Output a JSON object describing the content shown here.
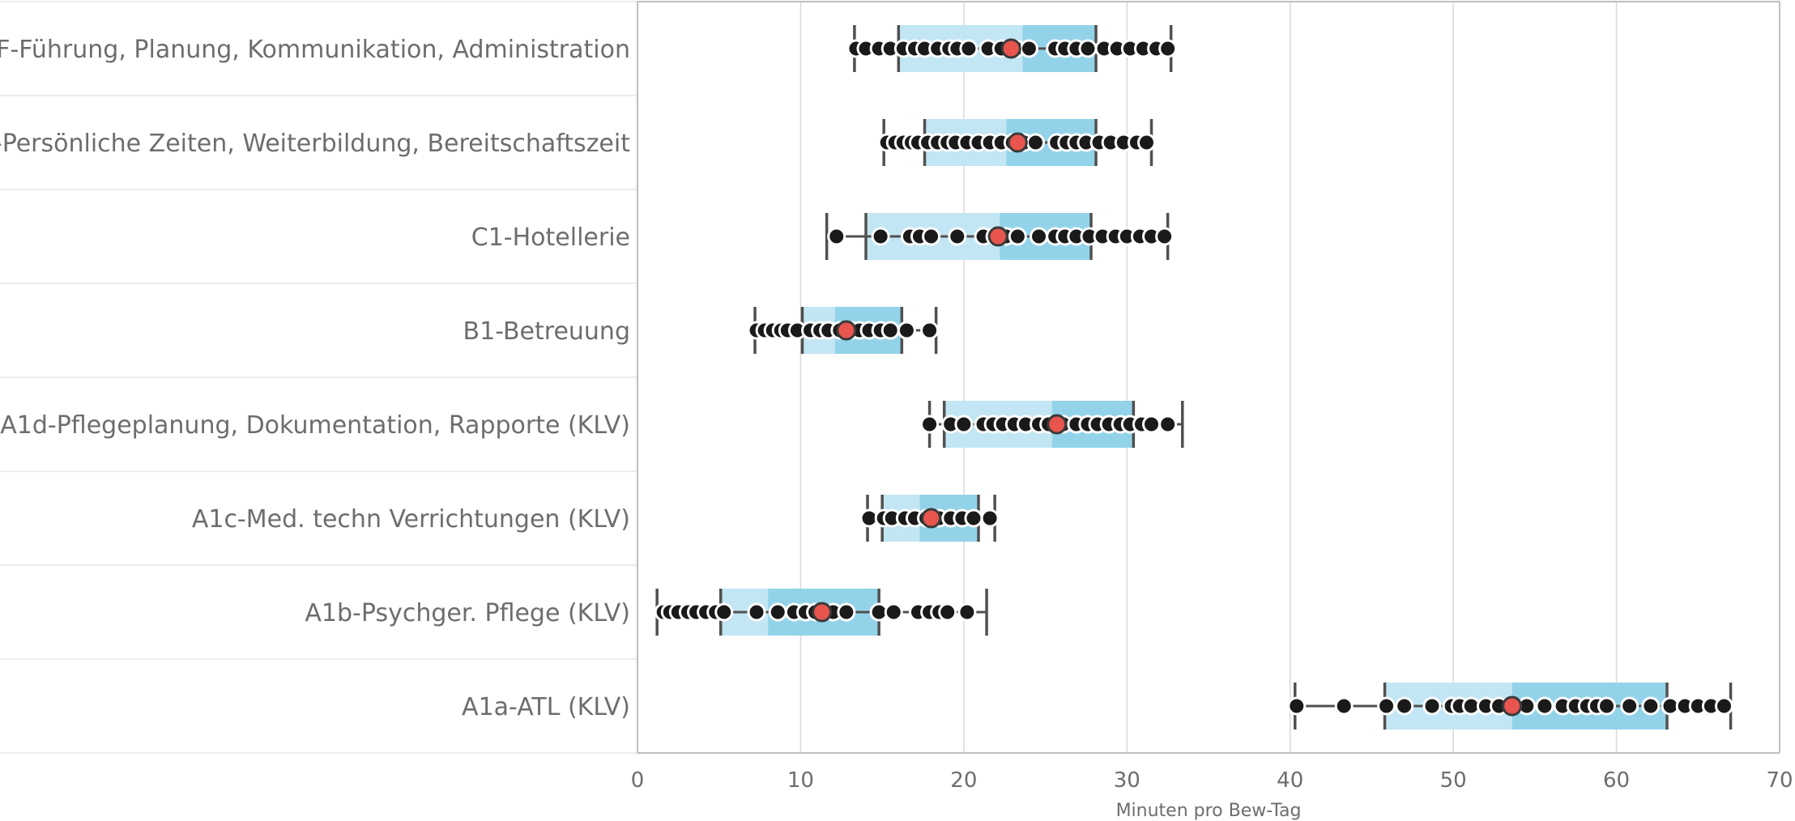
{
  "chart_data": {
    "type": "box",
    "xlabel": "Minuten pro Bew-Tag",
    "xlim": [
      0,
      70
    ],
    "x_ticks": [
      "0",
      "10",
      "20",
      "30",
      "40",
      "50",
      "60",
      "70"
    ],
    "grid": "vertical",
    "colors": {
      "box_q1_median": "#c2e6f3",
      "box_median_q3": "#93d3ea",
      "whisker": "#505050",
      "point": "#1a1a1a",
      "mean_point": "#e8554e",
      "gridline": "#d9d9d9",
      "row_separator": "#e6e6e6"
    },
    "categories": [
      "F-Führung, Planung, Kommunikation, Administration",
      "D-Persönliche Zeiten, Weiterbildung, Bereitschaftszeit",
      "C1-Hotellerie",
      "B1-Betreuung",
      "A1d-Pflegeplanung, Dokumentation, Rapporte (KLV)",
      "A1c-Med. techn Verrichtungen (KLV)",
      "A1b-Psychger. Pflege (KLV)",
      "A1a-ATL (KLV)"
    ],
    "boxes": [
      {
        "min": 13.3,
        "q1": 16.0,
        "median": 23.6,
        "q3": 28.1,
        "max": 32.7,
        "mean": 22.9,
        "points": [
          13.4,
          14.0,
          14.8,
          15.5,
          16.3,
          17.0,
          17.6,
          18.4,
          19.1,
          19.6,
          20.3,
          21.5,
          22.3,
          23.2,
          24.0,
          25.6,
          26.2,
          26.9,
          27.6,
          28.6,
          29.4,
          30.2,
          31.0,
          31.8,
          32.5
        ]
      },
      {
        "min": 15.1,
        "q1": 17.6,
        "median": 22.6,
        "q3": 28.1,
        "max": 31.5,
        "mean": 23.3,
        "points": [
          15.3,
          15.8,
          16.3,
          16.8,
          17.2,
          17.8,
          18.4,
          19.0,
          19.5,
          20.2,
          20.9,
          21.6,
          22.3,
          23.0,
          23.7,
          24.4,
          25.7,
          26.3,
          26.9,
          27.5,
          28.3,
          29.0,
          29.8,
          30.6,
          31.2
        ]
      },
      {
        "min": 11.6,
        "q1": 14.0,
        "median": 22.2,
        "q3": 27.8,
        "max": 32.5,
        "mean": 22.1,
        "points": [
          12.2,
          14.9,
          16.7,
          17.3,
          18.0,
          19.6,
          21.2,
          21.9,
          22.6,
          23.3,
          24.6,
          25.6,
          26.2,
          26.9,
          27.7,
          28.5,
          29.3,
          30.0,
          30.8,
          31.5,
          32.3
        ]
      },
      {
        "min": 7.2,
        "q1": 10.1,
        "median": 12.1,
        "q3": 16.2,
        "max": 18.3,
        "mean": 12.8,
        "points": [
          7.3,
          7.8,
          8.3,
          8.8,
          9.2,
          9.8,
          10.6,
          11.2,
          11.7,
          12.4,
          13.1,
          13.6,
          14.2,
          14.9,
          15.5,
          16.5,
          17.9
        ]
      },
      {
        "min": 17.9,
        "q1": 18.8,
        "median": 25.4,
        "q3": 30.4,
        "max": 33.4,
        "mean": 25.7,
        "points": [
          17.9,
          19.2,
          20.0,
          21.2,
          21.8,
          22.4,
          23.1,
          23.8,
          24.6,
          25.2,
          26.1,
          26.9,
          27.6,
          28.2,
          28.9,
          29.6,
          30.2,
          30.9,
          31.5,
          32.5
        ]
      },
      {
        "min": 14.1,
        "q1": 15.0,
        "median": 17.3,
        "q3": 20.9,
        "max": 21.9,
        "mean": 18.0,
        "points": [
          14.2,
          15.1,
          15.6,
          16.4,
          17.0,
          17.7,
          18.5,
          19.2,
          19.9,
          20.6,
          21.6
        ]
      },
      {
        "min": 1.2,
        "q1": 5.1,
        "median": 8.0,
        "q3": 14.8,
        "max": 21.4,
        "mean": 11.3,
        "points": [
          1.6,
          2.0,
          2.5,
          3.1,
          3.6,
          4.2,
          4.8,
          5.3,
          7.3,
          8.6,
          9.6,
          10.3,
          10.9,
          12.0,
          12.8,
          14.8,
          15.7,
          17.2,
          17.9,
          18.5,
          19.0,
          20.2
        ]
      },
      {
        "min": 40.3,
        "q1": 45.8,
        "median": 53.6,
        "q3": 63.1,
        "max": 67.0,
        "mean": 53.6,
        "points": [
          40.4,
          43.3,
          45.9,
          47.0,
          48.7,
          49.9,
          50.4,
          51.1,
          52.0,
          52.8,
          54.5,
          55.6,
          56.7,
          57.5,
          58.2,
          58.8,
          59.4,
          60.8,
          62.1,
          63.3,
          64.2,
          65.0,
          65.8,
          66.6
        ]
      }
    ]
  }
}
